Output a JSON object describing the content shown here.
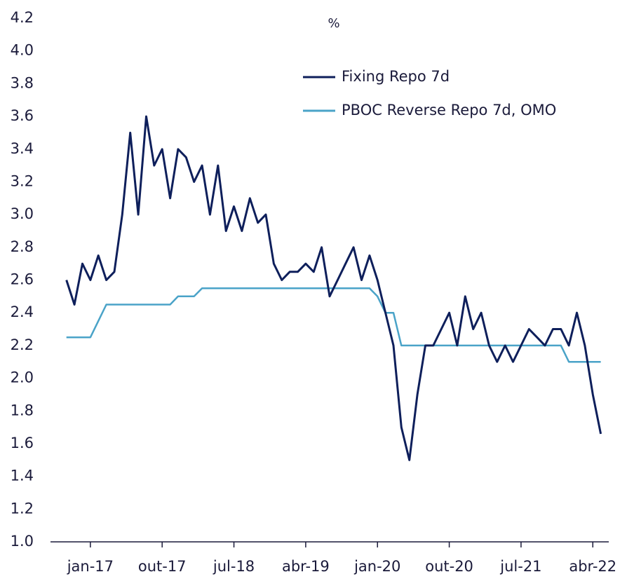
{
  "chart_data": {
    "type": "line",
    "subtitle": "%",
    "x": [
      "2016-10",
      "2016-11",
      "2016-12",
      "2017-01",
      "2017-02",
      "2017-03",
      "2017-04",
      "2017-05",
      "2017-06",
      "2017-07",
      "2017-08",
      "2017-09",
      "2017-10",
      "2017-11",
      "2017-12",
      "2018-01",
      "2018-02",
      "2018-03",
      "2018-04",
      "2018-05",
      "2018-06",
      "2018-07",
      "2018-08",
      "2018-09",
      "2018-10",
      "2018-11",
      "2018-12",
      "2019-01",
      "2019-02",
      "2019-03",
      "2019-04",
      "2019-05",
      "2019-06",
      "2019-07",
      "2019-08",
      "2019-09",
      "2019-10",
      "2019-11",
      "2019-12",
      "2020-01",
      "2020-02",
      "2020-03",
      "2020-04",
      "2020-05",
      "2020-06",
      "2020-07",
      "2020-08",
      "2020-09",
      "2020-10",
      "2020-11",
      "2020-12",
      "2021-01",
      "2021-02",
      "2021-03",
      "2021-04",
      "2021-05",
      "2021-06",
      "2021-07",
      "2021-08",
      "2021-09",
      "2021-10",
      "2021-11",
      "2021-12",
      "2022-01",
      "2022-02",
      "2022-03",
      "2022-04",
      "2022-05"
    ],
    "series": [
      {
        "name": "Fixing Repo 7d",
        "color": "#0e1f5b",
        "values": [
          2.6,
          2.45,
          2.7,
          2.6,
          2.75,
          2.6,
          2.65,
          3.0,
          3.5,
          3.0,
          3.6,
          3.3,
          3.4,
          3.1,
          3.4,
          3.35,
          3.2,
          3.3,
          3.0,
          3.3,
          2.9,
          3.05,
          2.9,
          3.1,
          2.95,
          3.0,
          2.7,
          2.6,
          2.65,
          2.65,
          2.7,
          2.65,
          2.8,
          2.5,
          2.6,
          2.7,
          2.8,
          2.6,
          2.75,
          2.6,
          2.4,
          2.2,
          1.7,
          1.5,
          1.9,
          2.2,
          2.2,
          2.3,
          2.4,
          2.2,
          2.5,
          2.3,
          2.4,
          2.2,
          2.1,
          2.2,
          2.1,
          2.2,
          2.3,
          2.25,
          2.2,
          2.3,
          2.3,
          2.2,
          2.4,
          2.2,
          1.9,
          1.66
        ]
      },
      {
        "name": "PBOC Reverse Repo 7d, OMO",
        "color": "#4aa3c8",
        "values": [
          2.25,
          2.25,
          2.25,
          2.25,
          2.35,
          2.45,
          2.45,
          2.45,
          2.45,
          2.45,
          2.45,
          2.45,
          2.45,
          2.45,
          2.5,
          2.5,
          2.5,
          2.55,
          2.55,
          2.55,
          2.55,
          2.55,
          2.55,
          2.55,
          2.55,
          2.55,
          2.55,
          2.55,
          2.55,
          2.55,
          2.55,
          2.55,
          2.55,
          2.55,
          2.55,
          2.55,
          2.55,
          2.55,
          2.55,
          2.5,
          2.4,
          2.4,
          2.2,
          2.2,
          2.2,
          2.2,
          2.2,
          2.2,
          2.2,
          2.2,
          2.2,
          2.2,
          2.2,
          2.2,
          2.2,
          2.2,
          2.2,
          2.2,
          2.2,
          2.2,
          2.2,
          2.2,
          2.2,
          2.1,
          2.1,
          2.1,
          2.1,
          2.1
        ]
      }
    ],
    "xlim": [
      "2016-08",
      "2022-06"
    ],
    "xticks": [
      {
        "value": "2017-01",
        "label": "jan-17"
      },
      {
        "value": "2017-10",
        "label": "out-17"
      },
      {
        "value": "2018-07",
        "label": "jul-18"
      },
      {
        "value": "2019-04",
        "label": "abr-19"
      },
      {
        "value": "2020-01",
        "label": "jan-20"
      },
      {
        "value": "2020-10",
        "label": "out-20"
      },
      {
        "value": "2021-07",
        "label": "jul-21"
      },
      {
        "value": "2022-04",
        "label": "abr-22"
      }
    ],
    "ylim": [
      1.0,
      4.2
    ],
    "yticks": [
      {
        "value": 1.0,
        "label": "1.0"
      },
      1.2,
      1.4,
      1.6,
      1.8,
      {
        "value": 2.0,
        "label": "2.0"
      },
      2.2,
      2.4,
      2.6,
      2.8,
      {
        "value": 3.0,
        "label": "3.0"
      },
      3.2,
      3.4,
      3.6,
      3.8,
      {
        "value": 4.0,
        "label": "4.0"
      },
      4.2
    ],
    "grid": false,
    "legend": "upper right"
  }
}
